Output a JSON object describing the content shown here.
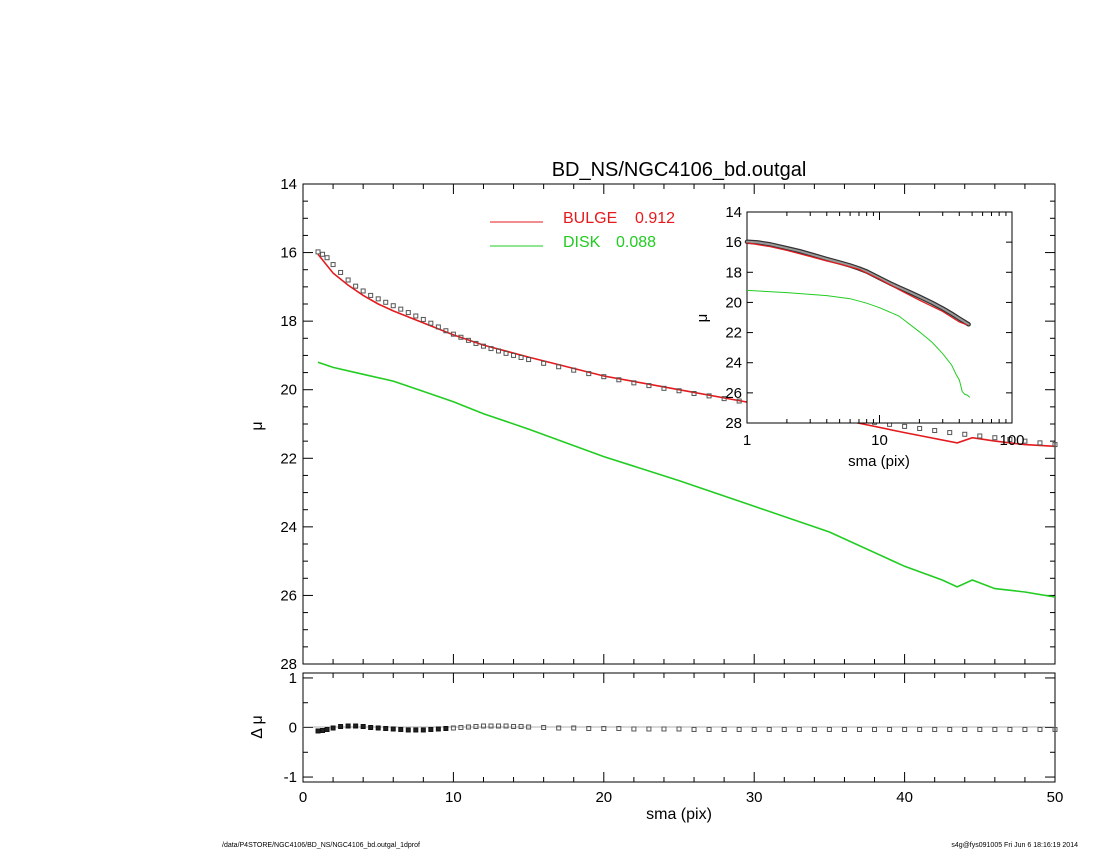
{
  "title": "BD_NS/NGC4106_bd.outgal",
  "footer": {
    "left": "/data/P4STORE/NGC4106/BD_NS/NGC4106_bd.outgal_1dprof",
    "right": "s4g@fys091005  Fri Jun  6 18:16:19 2014"
  },
  "colors": {
    "bulge": "#e41a1c",
    "disk": "#22cc22",
    "data": "#555555",
    "axis": "#000000"
  },
  "chart_data": [
    {
      "id": "main",
      "type": "line",
      "xlabel": "sma (pix)",
      "ylabel": "μ",
      "xlim": [
        0,
        50
      ],
      "ylim": [
        28,
        14
      ],
      "x_ticks": [
        "0",
        "10",
        "20",
        "30",
        "40",
        "50"
      ],
      "y_ticks": [
        "14",
        "16",
        "18",
        "20",
        "22",
        "24",
        "26",
        "28"
      ],
      "legend": [
        {
          "label": "BULGE",
          "value": "0.912",
          "color": "#e41a1c"
        },
        {
          "label": "DISK",
          "value": "0.088",
          "color": "#22cc22"
        }
      ],
      "series": [
        {
          "name": "BULGE",
          "color": "#e41a1c",
          "x": [
            1,
            2,
            3,
            4,
            5,
            6,
            8,
            10,
            12,
            15,
            20,
            25,
            30,
            35,
            40,
            43.5,
            44.5,
            46,
            48,
            50
          ],
          "y": [
            16.05,
            16.6,
            16.95,
            17.25,
            17.5,
            17.7,
            18.05,
            18.4,
            18.7,
            19.05,
            19.6,
            20.0,
            20.4,
            20.8,
            21.25,
            21.55,
            21.4,
            21.5,
            21.6,
            21.65
          ]
        },
        {
          "name": "DISK",
          "color": "#22cc22",
          "x": [
            1,
            2,
            4,
            6,
            8,
            10,
            12,
            15,
            20,
            25,
            30,
            35,
            40,
            42.5,
            43.5,
            44.5,
            46,
            48,
            50
          ],
          "y": [
            19.2,
            19.35,
            19.55,
            19.75,
            20.05,
            20.35,
            20.7,
            21.15,
            21.95,
            22.65,
            23.4,
            24.15,
            25.15,
            25.55,
            25.75,
            25.55,
            25.8,
            25.9,
            26.05
          ]
        }
      ],
      "data_points": {
        "x": [
          1,
          1.3,
          1.6,
          2,
          2.5,
          3,
          3.5,
          4,
          4.5,
          5,
          5.5,
          6,
          6.5,
          7,
          7.5,
          8,
          8.5,
          9,
          9.5,
          10,
          10.5,
          11,
          11.5,
          12,
          12.5,
          13,
          13.5,
          14,
          14.5,
          15,
          16,
          17,
          18,
          19,
          20,
          21,
          22,
          23,
          24,
          25,
          26,
          27,
          28,
          29,
          30,
          31,
          32,
          33,
          34,
          35,
          36,
          37,
          38,
          39,
          40,
          41,
          42,
          43,
          44,
          45,
          46,
          47,
          48,
          49,
          50
        ],
        "y": [
          15.98,
          16.05,
          16.15,
          16.35,
          16.58,
          16.8,
          16.98,
          17.12,
          17.25,
          17.35,
          17.45,
          17.55,
          17.65,
          17.75,
          17.85,
          17.95,
          18.06,
          18.17,
          18.28,
          18.38,
          18.47,
          18.56,
          18.65,
          18.73,
          18.8,
          18.87,
          18.94,
          19.0,
          19.06,
          19.12,
          19.23,
          19.33,
          19.43,
          19.53,
          19.62,
          19.71,
          19.8,
          19.88,
          19.96,
          20.03,
          20.11,
          20.18,
          20.26,
          20.33,
          20.4,
          20.47,
          20.54,
          20.61,
          20.68,
          20.75,
          20.82,
          20.89,
          20.95,
          21.01,
          21.07,
          21.13,
          21.19,
          21.25,
          21.3,
          21.35,
          21.4,
          21.45,
          21.5,
          21.55,
          21.6
        ]
      }
    },
    {
      "id": "residual",
      "type": "scatter",
      "xlabel": "sma (pix)",
      "ylabel": "Δ μ",
      "xlim": [
        0,
        50
      ],
      "ylim": [
        -1.1,
        1.1
      ],
      "x_ticks": [
        "0",
        "10",
        "20",
        "30",
        "40",
        "50"
      ],
      "y_ticks": [
        "1",
        "0",
        "-1"
      ],
      "data_points": {
        "x": [
          1,
          1.3,
          1.6,
          2,
          2.5,
          3,
          3.5,
          4,
          4.5,
          5,
          5.5,
          6,
          6.5,
          7,
          7.5,
          8,
          8.5,
          9,
          9.5,
          10,
          10.5,
          11,
          11.5,
          12,
          12.5,
          13,
          13.5,
          14,
          14.5,
          15,
          16,
          17,
          18,
          19,
          20,
          21,
          22,
          23,
          24,
          25,
          26,
          27,
          28,
          29,
          30,
          31,
          32,
          33,
          34,
          35,
          36,
          37,
          38,
          39,
          40,
          41,
          42,
          43,
          44,
          45,
          46,
          47,
          48,
          49,
          50
        ],
        "y": [
          -0.07,
          -0.06,
          -0.04,
          -0.01,
          0.02,
          0.03,
          0.03,
          0.02,
          0.0,
          -0.01,
          -0.02,
          -0.03,
          -0.04,
          -0.05,
          -0.05,
          -0.05,
          -0.04,
          -0.03,
          -0.02,
          -0.01,
          0.0,
          0.01,
          0.02,
          0.03,
          0.03,
          0.03,
          0.03,
          0.02,
          0.02,
          0.01,
          0.0,
          -0.01,
          -0.01,
          -0.02,
          -0.02,
          -0.02,
          -0.03,
          -0.03,
          -0.03,
          -0.03,
          -0.04,
          -0.04,
          -0.04,
          -0.04,
          -0.04,
          -0.04,
          -0.04,
          -0.04,
          -0.04,
          -0.04,
          -0.04,
          -0.04,
          -0.04,
          -0.04,
          -0.04,
          -0.04,
          -0.04,
          -0.04,
          -0.04,
          -0.04,
          -0.04,
          -0.04,
          -0.04,
          -0.04,
          -0.04
        ]
      }
    },
    {
      "id": "inset",
      "type": "line",
      "xscale": "log",
      "xlabel": "sma (pix)",
      "ylabel": "μ",
      "xlim": [
        1,
        100
      ],
      "ylim": [
        28,
        14
      ],
      "x_ticks": [
        "1",
        "10",
        "100"
      ],
      "y_ticks": [
        "14",
        "16",
        "18",
        "20",
        "22",
        "24",
        "26",
        "28"
      ],
      "series": [
        {
          "name": "BULGE",
          "color": "#e41a1c",
          "x": [
            1,
            1.5,
            2,
            3,
            4,
            5,
            7,
            10,
            14,
            20,
            30,
            40,
            46
          ],
          "y": [
            16.05,
            16.3,
            16.55,
            16.95,
            17.25,
            17.45,
            17.8,
            18.45,
            19.15,
            19.85,
            20.6,
            21.3,
            21.5
          ]
        },
        {
          "name": "DISK",
          "color": "#22cc22",
          "x": [
            1,
            2,
            4,
            6,
            8,
            10,
            14,
            20,
            25,
            30,
            35,
            38,
            40,
            41,
            42,
            44,
            46,
            48
          ],
          "y": [
            19.2,
            19.35,
            19.55,
            19.75,
            20.05,
            20.35,
            20.9,
            21.95,
            22.65,
            23.4,
            24.15,
            24.8,
            25.15,
            25.5,
            25.9,
            26.1,
            26.15,
            26.3
          ]
        }
      ],
      "data_points": {
        "x": [
          1,
          1.2,
          1.5,
          2,
          2.5,
          3,
          4,
          5,
          6,
          7,
          8,
          10,
          12,
          14,
          17,
          20,
          25,
          30,
          35,
          40,
          45,
          47
        ],
        "y": [
          15.98,
          16.02,
          16.15,
          16.4,
          16.6,
          16.8,
          17.12,
          17.35,
          17.55,
          17.75,
          17.95,
          18.38,
          18.73,
          19.0,
          19.33,
          19.62,
          20.03,
          20.4,
          20.75,
          21.07,
          21.35,
          21.45
        ]
      }
    }
  ]
}
